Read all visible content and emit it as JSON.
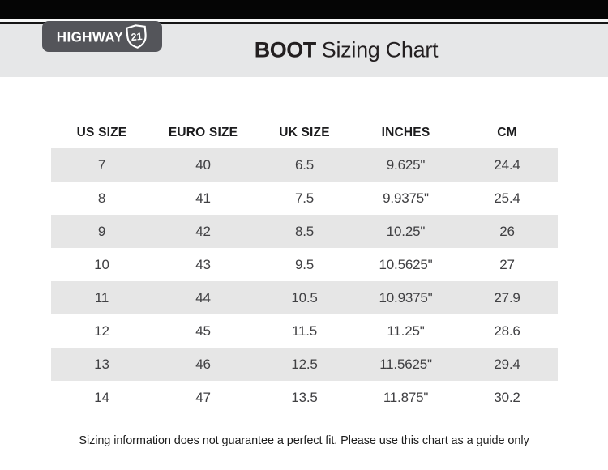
{
  "brand": {
    "name": "HIGHWAY",
    "badge": "21"
  },
  "header": {
    "title_bold": "BOOT",
    "title_light": "Sizing Chart"
  },
  "chart_data": {
    "type": "table",
    "title": "BOOT Sizing Chart",
    "columns": [
      "US SIZE",
      "EURO SIZE",
      "UK SIZE",
      "INCHES",
      "CM"
    ],
    "rows": [
      [
        "7",
        "40",
        "6.5",
        "9.625\"",
        "24.4"
      ],
      [
        "8",
        "41",
        "7.5",
        "9.9375\"",
        "25.4"
      ],
      [
        "9",
        "42",
        "8.5",
        "10.25\"",
        "26"
      ],
      [
        "10",
        "43",
        "9.5",
        "10.5625\"",
        "27"
      ],
      [
        "11",
        "44",
        "10.5",
        "10.9375\"",
        "27.9"
      ],
      [
        "12",
        "45",
        "11.5",
        "11.25\"",
        "28.6"
      ],
      [
        "13",
        "46",
        "12.5",
        "11.5625\"",
        "29.4"
      ],
      [
        "14",
        "47",
        "13.5",
        "11.875\"",
        "30.2"
      ]
    ],
    "layout": {
      "alternating_rows": true,
      "first_row_shaded": true
    }
  },
  "footer": {
    "note": "Sizing information does not guarantee a perfect fit. Please use this chart as a guide only"
  },
  "colors": {
    "top_bar": "#050505",
    "header_band": "#e6e7e8",
    "logo_tab": "#54555a",
    "row_shade": "#e6e6e6",
    "text": "#231f20"
  }
}
